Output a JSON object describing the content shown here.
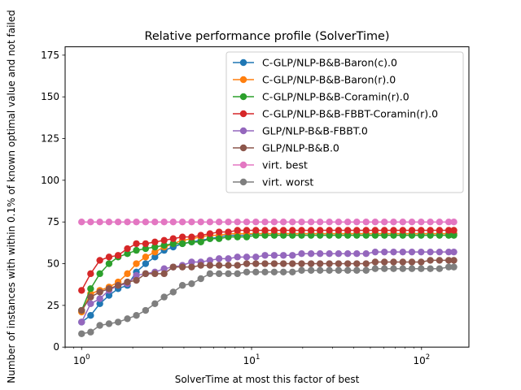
{
  "chart_data": {
    "type": "line",
    "title": "Relative performance profile (SolverTime)",
    "xlabel": "SolverTime at most this factor of best",
    "ylabel": "Number of instances with within 0.1% of known optimal value and not failed",
    "xscale": "log",
    "xlim": [
      0.8,
      190
    ],
    "ylim": [
      0,
      180
    ],
    "x_ticks": [
      {
        "value": 1,
        "base": "10",
        "exp": "0"
      },
      {
        "value": 10,
        "base": "10",
        "exp": "1"
      },
      {
        "value": 100,
        "base": "10",
        "exp": "2"
      }
    ],
    "y_ticks": [
      {
        "value": 0,
        "label": "0"
      },
      {
        "value": 25,
        "label": "25"
      },
      {
        "value": 50,
        "label": "50"
      },
      {
        "value": 75,
        "label": "75"
      },
      {
        "value": 100,
        "label": "100"
      },
      {
        "value": 125,
        "label": "125"
      },
      {
        "value": 150,
        "label": "150"
      },
      {
        "value": 175,
        "label": "175"
      }
    ],
    "legend": "top-right",
    "grid": false,
    "x": [
      1.0,
      1.13,
      1.28,
      1.45,
      1.64,
      1.86,
      2.1,
      2.38,
      2.7,
      3.06,
      3.46,
      3.92,
      4.44,
      5.03,
      5.69,
      6.44,
      7.3,
      8.26,
      9.36,
      10.6,
      12.0,
      13.6,
      15.4,
      17.4,
      19.7,
      22.4,
      25.3,
      28.7,
      32.5,
      36.8,
      41.6,
      47.2,
      53.4,
      60.5,
      68.5,
      77.6,
      87.8,
      99.5,
      112.7,
      127.6,
      144.5,
      155.0
    ],
    "series": [
      {
        "name": "C-GLP/NLP-B&B-Baron(c).0",
        "color": "#1f77b4",
        "values": [
          15,
          19,
          26,
          31,
          35,
          37,
          45,
          50,
          54,
          58,
          60,
          62,
          63,
          64,
          65,
          66,
          67,
          67,
          67,
          68,
          68,
          68,
          68,
          68,
          68,
          68,
          68,
          68,
          68,
          68,
          68,
          68,
          68,
          68,
          68,
          68,
          68,
          68,
          68,
          68,
          68,
          68
        ]
      },
      {
        "name": "C-GLP/NLP-B&B-Baron(r).0",
        "color": "#ff7f0e",
        "values": [
          21,
          32,
          34,
          36,
          39,
          44,
          50,
          54,
          57,
          60,
          62,
          64,
          65,
          66,
          67,
          67,
          68,
          68,
          68,
          68,
          68,
          68,
          68,
          68,
          68,
          68,
          68,
          68,
          68,
          68,
          68,
          68,
          68,
          68,
          68,
          68,
          68,
          68,
          68,
          68,
          68,
          68
        ]
      },
      {
        "name": "C-GLP/NLP-B&B-Coramin(r).0",
        "color": "#2ca02c",
        "values": [
          22,
          35,
          44,
          50,
          54,
          56,
          58,
          59,
          60,
          61,
          62,
          62,
          63,
          63,
          65,
          65,
          66,
          66,
          66,
          67,
          67,
          67,
          67,
          67,
          67,
          67,
          67,
          67,
          67,
          67,
          67,
          67,
          67,
          67,
          67,
          67,
          67,
          67,
          67,
          67,
          67,
          67
        ]
      },
      {
        "name": "C-GLP/NLP-B&B-FBBT-Coramin(r).0",
        "color": "#d62728",
        "values": [
          34,
          44,
          52,
          54,
          55,
          59,
          62,
          62,
          63,
          64,
          65,
          66,
          66,
          67,
          68,
          69,
          69,
          70,
          70,
          70,
          70,
          70,
          70,
          70,
          70,
          70,
          70,
          70,
          70,
          70,
          70,
          70,
          70,
          70,
          70,
          70,
          70,
          70,
          70,
          70,
          70,
          70
        ]
      },
      {
        "name": "GLP/NLP-B&B-FBBT.0",
        "color": "#9467bd",
        "values": [
          15,
          26,
          29,
          34,
          37,
          38,
          43,
          44,
          45,
          47,
          48,
          49,
          51,
          51,
          52,
          53,
          53,
          54,
          54,
          54,
          55,
          55,
          55,
          55,
          56,
          56,
          56,
          56,
          56,
          56,
          56,
          56,
          57,
          57,
          57,
          57,
          57,
          57,
          57,
          57,
          57,
          57
        ]
      },
      {
        "name": "GLP/NLP-B&B.0",
        "color": "#8c564b",
        "values": [
          22,
          30,
          33,
          35,
          37,
          39,
          40,
          44,
          44,
          44,
          48,
          48,
          48,
          49,
          49,
          49,
          49,
          49,
          50,
          50,
          50,
          50,
          50,
          50,
          50,
          50,
          50,
          50,
          50,
          50,
          50,
          50,
          51,
          51,
          51,
          51,
          51,
          51,
          52,
          52,
          52,
          52
        ]
      },
      {
        "name": "virt. best",
        "color": "#e377c2",
        "values": [
          75,
          75,
          75,
          75,
          75,
          75,
          75,
          75,
          75,
          75,
          75,
          75,
          75,
          75,
          75,
          75,
          75,
          75,
          75,
          75,
          75,
          75,
          75,
          75,
          75,
          75,
          75,
          75,
          75,
          75,
          75,
          75,
          75,
          75,
          75,
          75,
          75,
          75,
          75,
          75,
          75,
          75
        ]
      },
      {
        "name": "virt. worst",
        "color": "#7f7f7f",
        "values": [
          8,
          9,
          13,
          14,
          15,
          17,
          19,
          22,
          26,
          30,
          33,
          37,
          38,
          41,
          44,
          44,
          44,
          44,
          45,
          45,
          45,
          45,
          45,
          45,
          46,
          46,
          46,
          46,
          46,
          46,
          46,
          46,
          47,
          47,
          47,
          47,
          47,
          47,
          47,
          47,
          48,
          48
        ]
      }
    ]
  }
}
